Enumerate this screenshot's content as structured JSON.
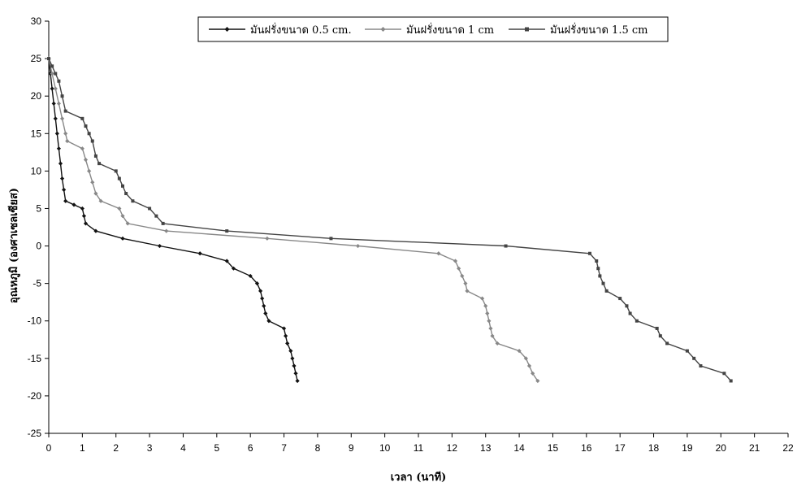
{
  "chart_data": {
    "type": "line",
    "title": "",
    "xlabel": "เวลา (นาที)",
    "ylabel": "อุณหภูมิ (องศาเซลเซียส)",
    "xlim": [
      0,
      22
    ],
    "ylim": [
      -25,
      30
    ],
    "xticks": [
      0,
      1,
      2,
      3,
      4,
      5,
      6,
      7,
      8,
      9,
      10,
      11,
      12,
      13,
      14,
      15,
      16,
      17,
      18,
      19,
      20,
      21,
      22
    ],
    "yticks": [
      30,
      25,
      20,
      15,
      10,
      5,
      0,
      -5,
      -10,
      -15,
      -20,
      -25
    ],
    "grid": false,
    "legend_position": "top",
    "series": [
      {
        "name": "มันฝรั่งขนาด 0.5 cm.",
        "color": "#111111",
        "marker": "diamond",
        "points": [
          [
            0,
            25
          ],
          [
            0.05,
            23
          ],
          [
            0.1,
            21
          ],
          [
            0.15,
            19
          ],
          [
            0.2,
            17
          ],
          [
            0.25,
            15
          ],
          [
            0.3,
            13
          ],
          [
            0.35,
            11
          ],
          [
            0.4,
            9
          ],
          [
            0.45,
            7.5
          ],
          [
            0.5,
            6
          ],
          [
            0.75,
            5.5
          ],
          [
            1.0,
            5
          ],
          [
            1.05,
            4
          ],
          [
            1.1,
            3
          ],
          [
            1.4,
            2
          ],
          [
            2.2,
            1
          ],
          [
            3.3,
            0
          ],
          [
            4.5,
            -1
          ],
          [
            5.3,
            -2
          ],
          [
            5.5,
            -3
          ],
          [
            6.0,
            -4
          ],
          [
            6.2,
            -5
          ],
          [
            6.3,
            -6
          ],
          [
            6.35,
            -7
          ],
          [
            6.4,
            -8
          ],
          [
            6.45,
            -9
          ],
          [
            6.55,
            -10
          ],
          [
            7.0,
            -11
          ],
          [
            7.05,
            -12
          ],
          [
            7.1,
            -13
          ],
          [
            7.2,
            -14
          ],
          [
            7.25,
            -15
          ],
          [
            7.3,
            -16
          ],
          [
            7.35,
            -17
          ],
          [
            7.4,
            -18
          ]
        ]
      },
      {
        "name": "มันฝรั่งขนาด 1 cm",
        "color": "#888888",
        "marker": "diamond",
        "points": [
          [
            0,
            25
          ],
          [
            0.1,
            23
          ],
          [
            0.2,
            21
          ],
          [
            0.3,
            19
          ],
          [
            0.4,
            17
          ],
          [
            0.5,
            15
          ],
          [
            0.55,
            14
          ],
          [
            1.0,
            13
          ],
          [
            1.1,
            11.5
          ],
          [
            1.2,
            10
          ],
          [
            1.3,
            8.5
          ],
          [
            1.4,
            7
          ],
          [
            1.55,
            6
          ],
          [
            2.1,
            5
          ],
          [
            2.2,
            4
          ],
          [
            2.35,
            3
          ],
          [
            3.5,
            2
          ],
          [
            6.5,
            1
          ],
          [
            9.2,
            0
          ],
          [
            11.6,
            -1
          ],
          [
            12.1,
            -2
          ],
          [
            12.2,
            -3
          ],
          [
            12.3,
            -4
          ],
          [
            12.4,
            -5
          ],
          [
            12.45,
            -6
          ],
          [
            12.9,
            -7
          ],
          [
            13.0,
            -8
          ],
          [
            13.05,
            -9
          ],
          [
            13.1,
            -10
          ],
          [
            13.15,
            -11
          ],
          [
            13.2,
            -12
          ],
          [
            13.35,
            -13
          ],
          [
            14.0,
            -14
          ],
          [
            14.2,
            -15
          ],
          [
            14.3,
            -16
          ],
          [
            14.4,
            -17
          ],
          [
            14.55,
            -18
          ]
        ]
      },
      {
        "name": "มันฝรั่งขนาด 1.5 cm",
        "color": "#444444",
        "marker": "square",
        "points": [
          [
            0,
            25
          ],
          [
            0.1,
            24
          ],
          [
            0.2,
            23
          ],
          [
            0.3,
            22
          ],
          [
            0.4,
            20
          ],
          [
            0.5,
            18
          ],
          [
            1.0,
            17
          ],
          [
            1.1,
            16
          ],
          [
            1.2,
            15
          ],
          [
            1.3,
            14
          ],
          [
            1.4,
            12
          ],
          [
            1.5,
            11
          ],
          [
            2.0,
            10
          ],
          [
            2.1,
            9
          ],
          [
            2.2,
            8
          ],
          [
            2.3,
            7
          ],
          [
            2.5,
            6
          ],
          [
            3.0,
            5
          ],
          [
            3.2,
            4
          ],
          [
            3.4,
            3
          ],
          [
            5.3,
            2
          ],
          [
            8.4,
            1
          ],
          [
            13.6,
            0
          ],
          [
            16.1,
            -1
          ],
          [
            16.3,
            -2
          ],
          [
            16.35,
            -3
          ],
          [
            16.4,
            -4
          ],
          [
            16.5,
            -5
          ],
          [
            16.6,
            -6
          ],
          [
            17.0,
            -7
          ],
          [
            17.2,
            -8
          ],
          [
            17.3,
            -9
          ],
          [
            17.5,
            -10
          ],
          [
            18.1,
            -11
          ],
          [
            18.2,
            -12
          ],
          [
            18.4,
            -13
          ],
          [
            19.0,
            -14
          ],
          [
            19.2,
            -15
          ],
          [
            19.4,
            -16
          ],
          [
            20.1,
            -17
          ],
          [
            20.3,
            -18
          ]
        ]
      }
    ]
  }
}
